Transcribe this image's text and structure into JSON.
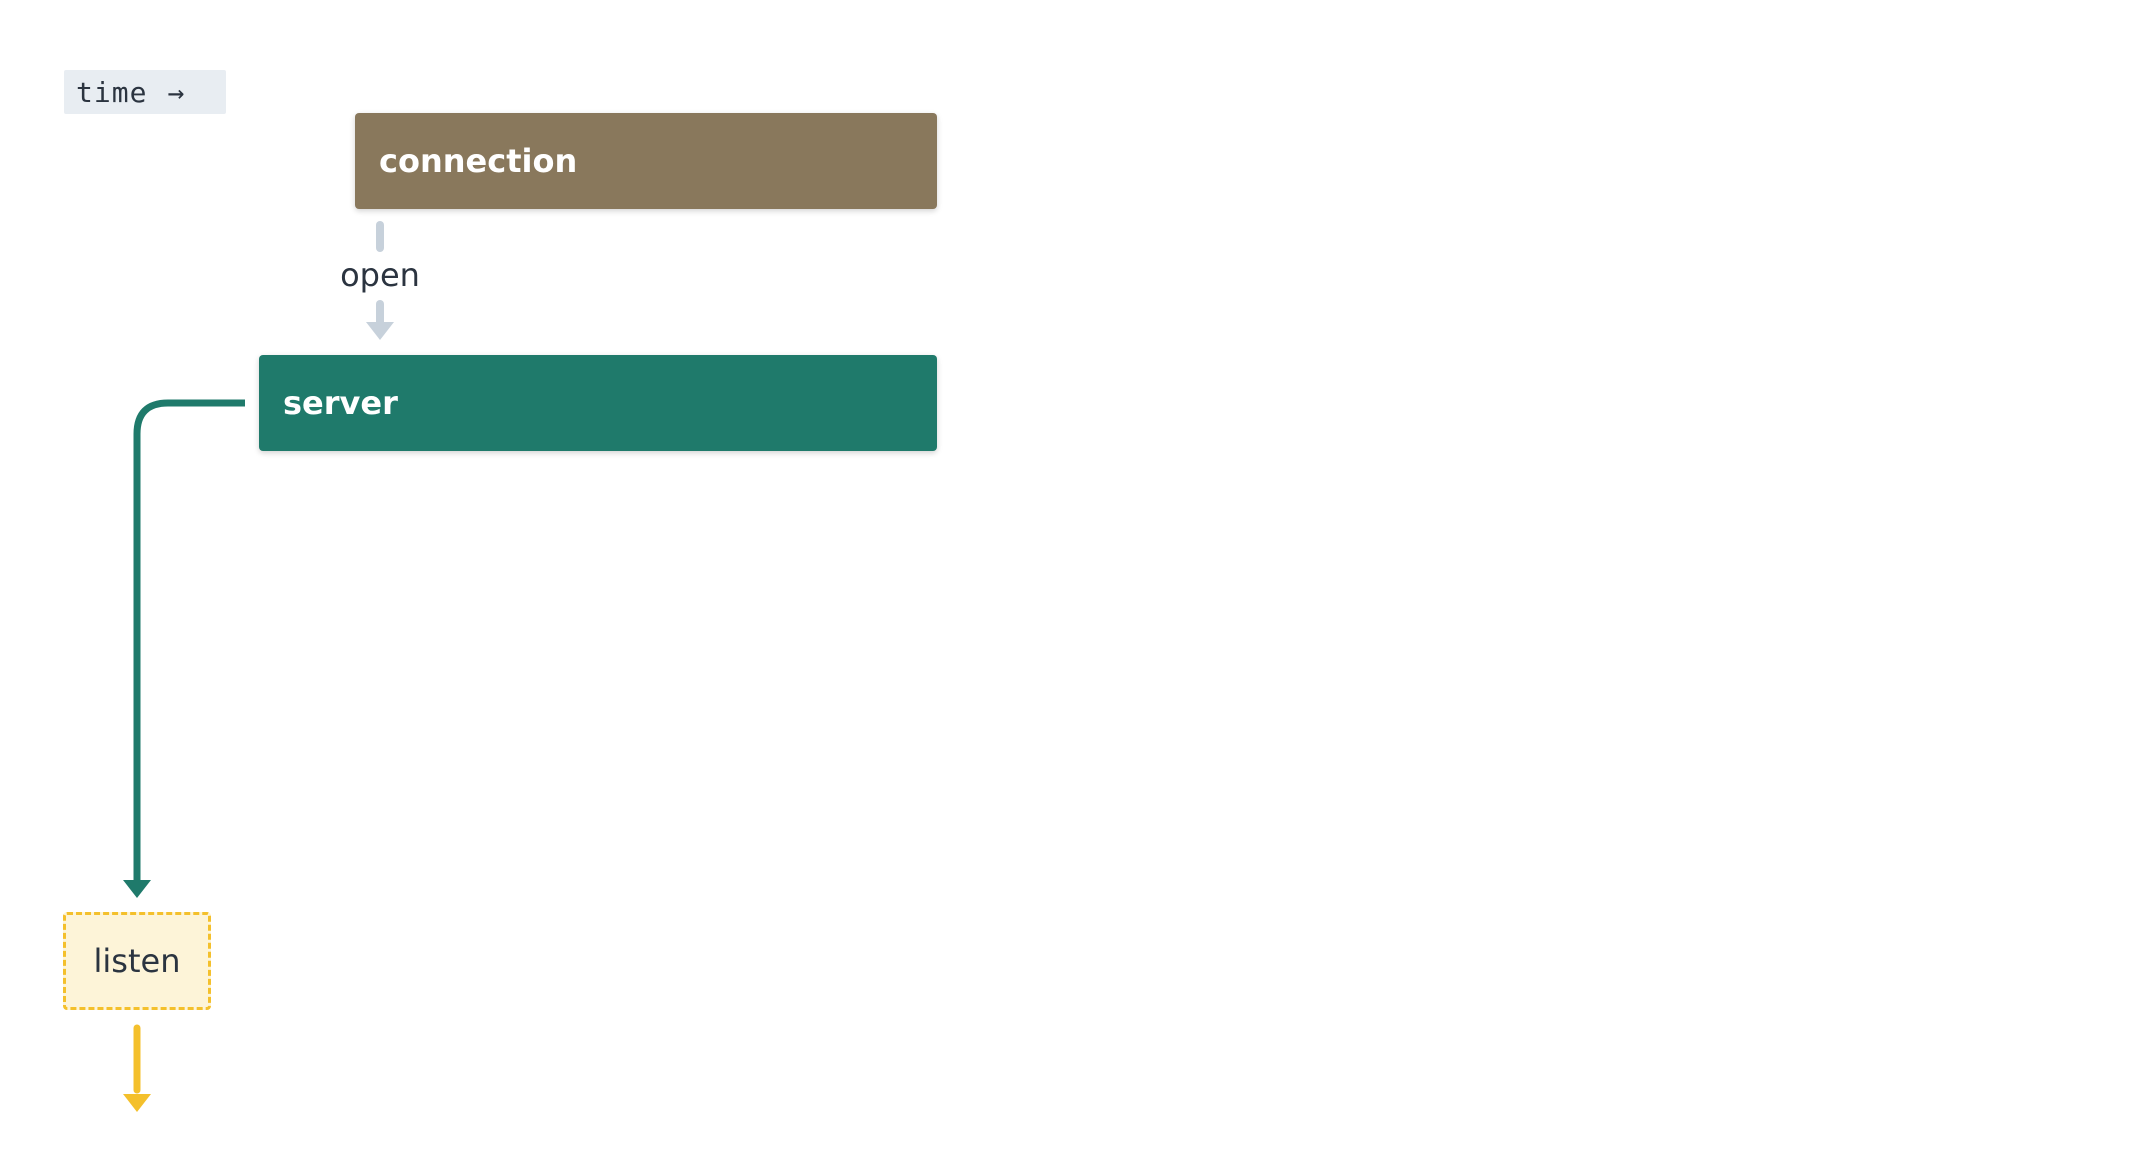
{
  "legend": {
    "label": "time",
    "arrow": "→"
  },
  "nodes": {
    "connection": {
      "label": "connection",
      "color": "#89785c"
    },
    "server": {
      "label": "server",
      "color": "#1f7a6b"
    },
    "listen": {
      "label": "listen",
      "fill": "#fdf4d8",
      "border": "#f4c02c"
    }
  },
  "edges": {
    "open": {
      "label": "open",
      "color": "#c7d1db"
    },
    "server_to_listen": {
      "color": "#1f7a6b"
    },
    "listen_out": {
      "color": "#f4c02c"
    }
  }
}
